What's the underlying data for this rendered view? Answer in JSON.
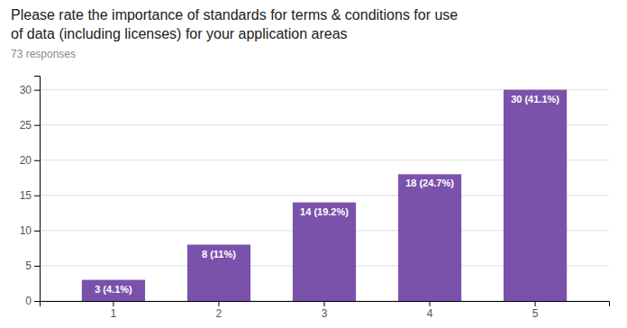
{
  "chart_data": {
    "type": "bar",
    "title": [
      "Please rate the importance of standards for terms & conditions for use",
      "of data (including licenses) for your application areas"
    ],
    "subtitle": "73 responses",
    "categories": [
      1,
      2,
      3,
      4,
      5
    ],
    "values": [
      3,
      8,
      14,
      18,
      30
    ],
    "value_labels": [
      "3 (4.1%)",
      "8 (11%)",
      "14 (19.2%)",
      "18 (24.7%)",
      "30 (41.1%)"
    ],
    "data_labels": true,
    "color": "#7B52AB",
    "ylim": [
      0,
      32
    ],
    "yticks": [
      0,
      5,
      10,
      15,
      20,
      25,
      30
    ],
    "grid": true
  }
}
